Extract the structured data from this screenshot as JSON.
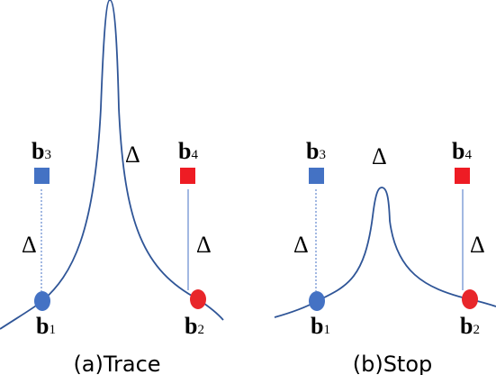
{
  "panels": [
    {
      "caption": "(a)Trace",
      "nodes": [
        {
          "label": "b",
          "sub": "1"
        },
        {
          "label": "b",
          "sub": "2"
        },
        {
          "label": "b",
          "sub": "3"
        },
        {
          "label": "b",
          "sub": "4"
        }
      ],
      "deltas": [
        "Δ",
        "Δ",
        "Δ"
      ]
    },
    {
      "caption": "(b)Stop",
      "nodes": [
        {
          "label": "b",
          "sub": "1"
        },
        {
          "label": "b",
          "sub": "2"
        },
        {
          "label": "b",
          "sub": "3"
        },
        {
          "label": "b",
          "sub": "4"
        }
      ],
      "deltas": [
        "Δ",
        "Δ",
        "Δ"
      ]
    }
  ]
}
